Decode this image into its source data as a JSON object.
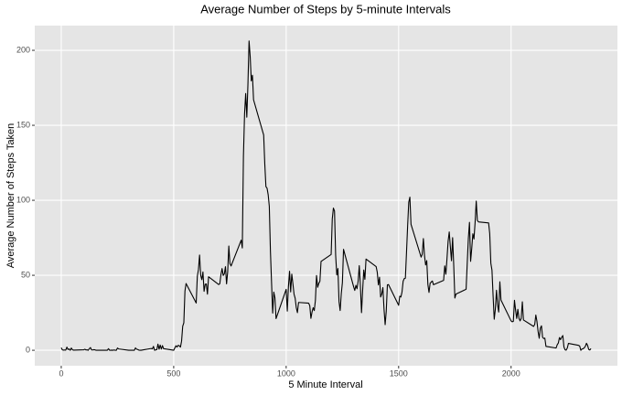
{
  "chart_data": {
    "type": "line",
    "title": "Average Number of Steps by 5-minute Intervals",
    "xlabel": "5 Minute Interval",
    "ylabel": "Average Number of Steps Taken",
    "x": [
      0,
      5,
      10,
      15,
      20,
      25,
      30,
      35,
      40,
      45,
      50,
      55,
      100,
      105,
      110,
      115,
      120,
      125,
      130,
      135,
      140,
      145,
      150,
      155,
      200,
      205,
      210,
      215,
      220,
      225,
      230,
      235,
      240,
      245,
      250,
      255,
      300,
      305,
      310,
      315,
      320,
      325,
      330,
      335,
      340,
      345,
      350,
      355,
      400,
      405,
      410,
      415,
      420,
      425,
      430,
      435,
      440,
      445,
      450,
      455,
      500,
      505,
      510,
      515,
      520,
      525,
      530,
      535,
      540,
      545,
      550,
      555,
      600,
      605,
      610,
      615,
      620,
      625,
      630,
      635,
      640,
      645,
      650,
      655,
      700,
      705,
      710,
      715,
      720,
      725,
      730,
      735,
      740,
      745,
      750,
      755,
      800,
      805,
      810,
      815,
      820,
      825,
      830,
      835,
      840,
      845,
      850,
      855,
      900,
      905,
      910,
      915,
      920,
      925,
      930,
      935,
      940,
      945,
      950,
      955,
      1000,
      1005,
      1010,
      1015,
      1020,
      1025,
      1030,
      1035,
      1040,
      1045,
      1050,
      1055,
      1100,
      1105,
      1110,
      1115,
      1120,
      1125,
      1130,
      1135,
      1140,
      1145,
      1150,
      1155,
      1200,
      1205,
      1210,
      1215,
      1220,
      1225,
      1230,
      1235,
      1240,
      1245,
      1250,
      1255,
      1300,
      1305,
      1310,
      1315,
      1320,
      1325,
      1330,
      1335,
      1340,
      1345,
      1350,
      1355,
      1400,
      1405,
      1410,
      1415,
      1420,
      1425,
      1430,
      1435,
      1440,
      1445,
      1450,
      1455,
      1500,
      1505,
      1510,
      1515,
      1520,
      1525,
      1530,
      1535,
      1540,
      1545,
      1550,
      1555,
      1600,
      1605,
      1610,
      1615,
      1620,
      1625,
      1630,
      1635,
      1640,
      1645,
      1650,
      1655,
      1700,
      1705,
      1710,
      1715,
      1720,
      1725,
      1730,
      1735,
      1740,
      1745,
      1750,
      1755,
      1800,
      1805,
      1810,
      1815,
      1820,
      1825,
      1830,
      1835,
      1840,
      1845,
      1850,
      1855,
      1900,
      1905,
      1910,
      1915,
      1920,
      1925,
      1930,
      1935,
      1940,
      1945,
      1950,
      1955,
      2000,
      2005,
      2010,
      2015,
      2020,
      2025,
      2030,
      2035,
      2040,
      2045,
      2050,
      2055,
      2100,
      2105,
      2110,
      2115,
      2120,
      2125,
      2130,
      2135,
      2140,
      2145,
      2150,
      2155,
      2200,
      2205,
      2210,
      2215,
      2220,
      2225,
      2230,
      2235,
      2240,
      2245,
      2250,
      2255,
      2300,
      2305,
      2310,
      2315,
      2320,
      2325,
      2330,
      2335,
      2340,
      2345,
      2350,
      2355
    ],
    "series": [
      {
        "name": "steps",
        "color": "#000000",
        "values": [
          1.7,
          0.3,
          0.1,
          0.2,
          0.1,
          2.1,
          0.5,
          0.9,
          0,
          1.5,
          0.3,
          0.1,
          0.3,
          0.7,
          0.2,
          0.3,
          0,
          1.1,
          1.8,
          0.2,
          0.2,
          0.4,
          0.3,
          0,
          0,
          0,
          1.1,
          0,
          0,
          0.1,
          0,
          0.2,
          0,
          0,
          1.5,
          0.9,
          0,
          0,
          0,
          0,
          0,
          0,
          1.6,
          0.7,
          0.5,
          0.1,
          0,
          0,
          1.2,
          0.9,
          2.6,
          0,
          0.3,
          0.4,
          4.1,
          0.7,
          3.5,
          0.8,
          3.1,
          1.1,
          0,
          1.6,
          3,
          2.2,
          3.3,
          3,
          2.1,
          6.1,
          16,
          18.3,
          39.5,
          44.5,
          31.5,
          49.3,
          53.8,
          63.5,
          50,
          47.1,
          52.2,
          39.3,
          44,
          44.2,
          37.4,
          49,
          43.8,
          44.4,
          50.5,
          54.5,
          49.9,
          50.9,
          55.7,
          44.3,
          52.3,
          69.5,
          57.8,
          56.2,
          73.4,
          68.2,
          129.4,
          157.5,
          171.2,
          155.4,
          177.3,
          206.2,
          195.9,
          179.6,
          183.4,
          167,
          143.5,
          124,
          109.1,
          108.1,
          103.7,
          96,
          66.2,
          45.2,
          24.8,
          38.8,
          35,
          21.1,
          40.6,
          26.1,
          42.4,
          52.7,
          38.9,
          50.8,
          44.3,
          37.4,
          34.7,
          28.3,
          25.1,
          31.9,
          31.4,
          29.7,
          21.3,
          25.5,
          28.4,
          26.5,
          33.3,
          49.9,
          42,
          44.6,
          46,
          59.2,
          63.9,
          87.6,
          94.8,
          92.8,
          63.4,
          50.2,
          54.5,
          32.4,
          26.5,
          37.7,
          45.1,
          67.3,
          42.3,
          39.9,
          43.3,
          41,
          46.2,
          56.4,
          42.8,
          25.1,
          40,
          53.5,
          47.3,
          60.8,
          55.8,
          52,
          43.6,
          48.7,
          35.5,
          37.5,
          41.8,
          27.5,
          17.1,
          26.1,
          43.6,
          43.8,
          30,
          36.1,
          35.5,
          38.8,
          46,
          47.8,
          48.1,
          65.3,
          82.9,
          98.7,
          102.1,
          84,
          62.1,
          64.1,
          74.5,
          63.2,
          56.9,
          59.8,
          43.9,
          38.6,
          44.7,
          45.5,
          46.2,
          43.7,
          46.6,
          56.3,
          50.7,
          61.2,
          72.7,
          78.9,
          68.9,
          59.7,
          75.1,
          56.5,
          34.8,
          37.5,
          40.7,
          58,
          74.7,
          85.3,
          59.3,
          67.8,
          77.7,
          74.2,
          85.3,
          99.5,
          86.6,
          85.6,
          84.9,
          77.8,
          58,
          53.4,
          36.3,
          20.7,
          27.4,
          40,
          30.2,
          25.5,
          45.7,
          33.5,
          19.6,
          19,
          19.3,
          33.3,
          26.8,
          21.2,
          27.3,
          21.3,
          19.6,
          21.3,
          32.3,
          20.2,
          15.9,
          17.2,
          23.5,
          19.2,
          12.5,
          8,
          14.7,
          16.3,
          8.7,
          7.8,
          8.1,
          2.6,
          1.5,
          3.7,
          4.8,
          8.5,
          7.1,
          8.7,
          9.8,
          2.2,
          0.3,
          0.1,
          1.6,
          4.6,
          3.3,
          2.8,
          0,
          0.8,
          1,
          1.6,
          2.6,
          4.7,
          3.3,
          0.6,
          0.2,
          1.1
        ]
      }
    ],
    "xlim": [
      -117.75,
      2472.75
    ],
    "xticks": [
      0,
      500,
      1000,
      1500,
      2000
    ],
    "ylim": [
      -10.31,
      216.48
    ],
    "yticks": [
      0,
      50,
      100,
      150,
      200
    ],
    "grid": true
  }
}
